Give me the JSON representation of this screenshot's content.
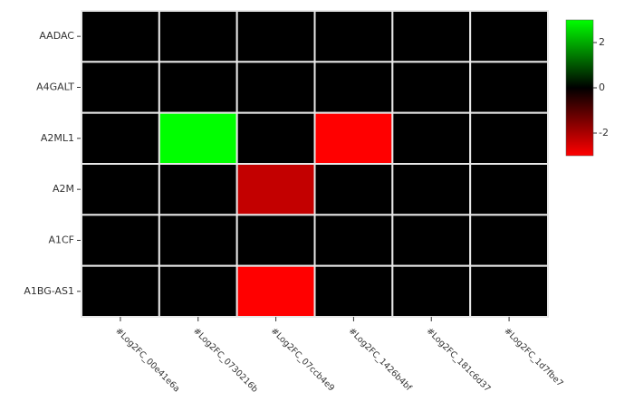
{
  "chart_data": {
    "type": "heatmap",
    "categories": [
      "#Log2FC_00e41e6a",
      "#Log2FC_0730216b",
      "#Log2FC_07ccb4e9",
      "#Log2FC_1426b4bf",
      "#Log2FC_181c6d37",
      "#Log2FC_1d7fbe7"
    ],
    "rows": [
      "AADAC",
      "A4GALT",
      "A2ML1",
      "A2M",
      "A1CF",
      "A1BG-AS1"
    ],
    "values": [
      [
        0,
        0,
        0,
        0,
        0,
        0
      ],
      [
        0,
        0,
        0,
        0,
        0,
        0
      ],
      [
        0,
        3,
        0,
        -3,
        0,
        0
      ],
      [
        0,
        0,
        -2.3,
        0,
        0,
        0
      ],
      [
        0,
        0,
        0,
        0,
        0,
        0
      ],
      [
        0,
        0,
        -3,
        0,
        0,
        0
      ]
    ],
    "zlim": [
      -3,
      3
    ],
    "zticks": [
      -2,
      0,
      2
    ],
    "low_color": "#ff0000",
    "mid_color": "#000000",
    "high_color": "#00ff00"
  }
}
